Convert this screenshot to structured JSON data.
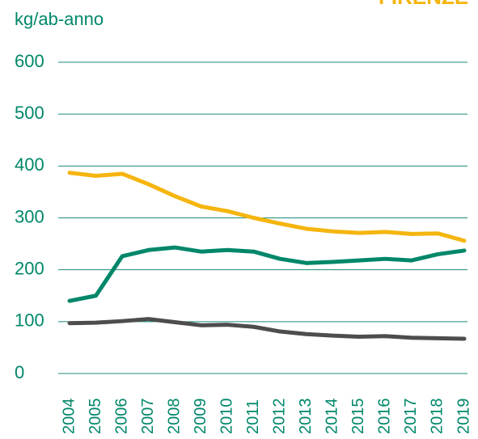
{
  "chart_data": {
    "type": "line",
    "title": "FIRENZE",
    "y_label": "kg/ab-anno",
    "categories": [
      "2004",
      "2005",
      "2006",
      "2007",
      "2008",
      "2009",
      "2010",
      "2011",
      "2012",
      "2013",
      "2014",
      "2015",
      "2016",
      "2017",
      "2018",
      "2019"
    ],
    "series": [
      {
        "color": "#f5b50f",
        "values": [
          387,
          381,
          385,
          365,
          342,
          322,
          313,
          300,
          289,
          279,
          274,
          271,
          273,
          269,
          270,
          256
        ]
      },
      {
        "color": "#00876a",
        "values": [
          140,
          150,
          226,
          238,
          243,
          235,
          238,
          235,
          221,
          213,
          215,
          218,
          221,
          218,
          230,
          237
        ]
      },
      {
        "color": "#4d4d4d",
        "values": [
          97,
          98,
          101,
          105,
          99,
          93,
          94,
          90,
          81,
          76,
          73,
          71,
          72,
          69,
          68,
          67
        ]
      }
    ],
    "ylim": [
      0,
      600
    ],
    "yticks": [
      0,
      100,
      200,
      300,
      400,
      500,
      600
    ],
    "grid": true
  }
}
